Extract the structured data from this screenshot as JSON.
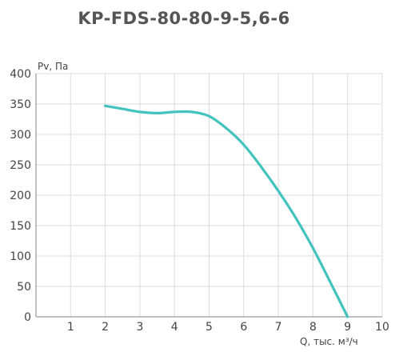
{
  "chart_data": {
    "type": "line",
    "title": "KP-FDS-80-80-9-5,6-6",
    "ylabel": "Pv, Па",
    "xlabel": "Q, тыс. м³/ч",
    "xlim": [
      0,
      10
    ],
    "ylim": [
      0,
      400
    ],
    "x_ticks": [
      "1",
      "2",
      "3",
      "4",
      "5",
      "6",
      "7",
      "8",
      "9",
      "10"
    ],
    "y_ticks": [
      "0",
      "50",
      "100",
      "150",
      "200",
      "250",
      "300",
      "350",
      "400"
    ],
    "grid": true,
    "series": [
      {
        "color": "#43c3be",
        "x": [
          2.0,
          2.5,
          3.0,
          3.5,
          4.0,
          4.5,
          5.0,
          5.5,
          6.0,
          6.5,
          7.0,
          7.5,
          8.0,
          8.5,
          9.0
        ],
        "y": [
          347,
          342,
          337,
          335,
          337,
          337,
          330,
          310,
          283,
          247,
          207,
          163,
          113,
          57,
          0
        ]
      }
    ]
  }
}
